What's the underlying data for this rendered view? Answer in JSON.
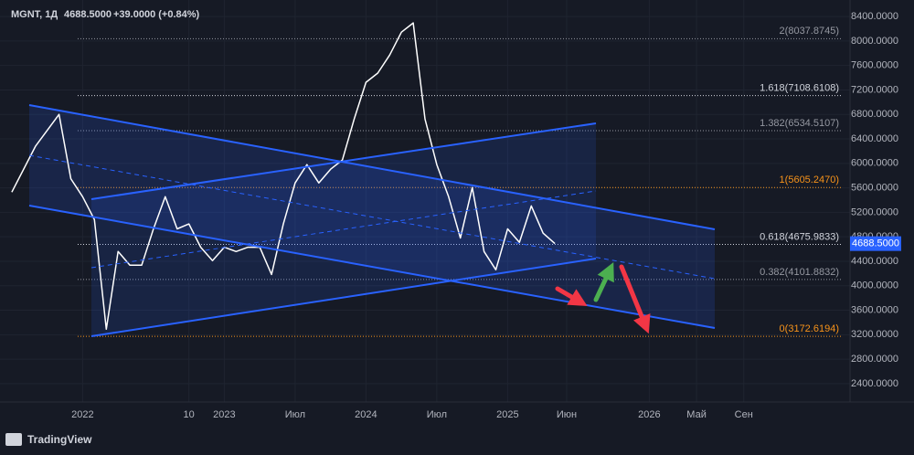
{
  "header": {
    "symbol": "MGNT, 1Д",
    "change": "+39.0000 (+0.84%)"
  },
  "chart_data": {
    "type": "line",
    "x": [
      "2021-07",
      "2021-09",
      "2021-11",
      "2021-12",
      "2022-01",
      "2022-02",
      "2022-03",
      "2022-04",
      "2022-05",
      "2022-06",
      "2022-07",
      "2022-08",
      "2022-09",
      "2022-10",
      "2022-11",
      "2022-12",
      "2023-01",
      "2023-02",
      "2023-03",
      "2023-04",
      "2023-05",
      "2023-06",
      "2023-07",
      "2023-08",
      "2023-09",
      "2023-10",
      "2023-11",
      "2023-12",
      "2024-01",
      "2024-02",
      "2024-03",
      "2024-04",
      "2024-05",
      "2024-06",
      "2024-07",
      "2024-08",
      "2024-09",
      "2024-10",
      "2024-11",
      "2024-12",
      "2025-01",
      "2025-02",
      "2025-03",
      "2025-04",
      "2025-05"
    ],
    "series": [
      {
        "name": "MGNT",
        "color": "#ffffff",
        "values": [
          5530,
          6280,
          6800,
          5750,
          5455,
          5080,
          3290,
          4560,
          4335,
          4335,
          4930,
          5455,
          4930,
          5010,
          4630,
          4410,
          4630,
          4560,
          4630,
          4630,
          4185,
          5010,
          5680,
          5980,
          5680,
          5905,
          6055,
          6725,
          7325,
          7475,
          7770,
          8145,
          8295,
          6725,
          5980,
          5455,
          4780,
          5605,
          4560,
          4260,
          4930,
          4710,
          5305,
          4860,
          4688.5
        ]
      }
    ],
    "last_price": {
      "value": 4688.5,
      "label": "4688.5000"
    },
    "xlim": [
      "2021-06",
      "2027-06"
    ],
    "xticks": [
      {
        "value": "2022-01",
        "label": "2022"
      },
      {
        "value": "2022-10",
        "label": "10"
      },
      {
        "value": "2023-01",
        "label": "2023"
      },
      {
        "value": "2023-07",
        "label": "Июл"
      },
      {
        "value": "2024-01",
        "label": "2024"
      },
      {
        "value": "2024-07",
        "label": "Июл"
      },
      {
        "value": "2025-01",
        "label": "2025"
      },
      {
        "value": "2025-06",
        "label": "Июн"
      },
      {
        "value": "2026-01",
        "label": "2026"
      },
      {
        "value": "2026-05",
        "label": "Май"
      },
      {
        "value": "2026-09",
        "label": "Сен"
      }
    ],
    "ylim": [
      2100,
      8670
    ],
    "yticks": [
      {
        "value": 2400,
        "label": "2400.0000"
      },
      {
        "value": 2800,
        "label": "2800.0000"
      },
      {
        "value": 3200,
        "label": "3200.0000"
      },
      {
        "value": 3600,
        "label": "3600.0000"
      },
      {
        "value": 4000,
        "label": "4000.0000"
      },
      {
        "value": 4400,
        "label": "4400.0000"
      },
      {
        "value": 4800,
        "label": "4800.0000"
      },
      {
        "value": 5200,
        "label": "5200.0000"
      },
      {
        "value": 5600,
        "label": "5600.0000"
      },
      {
        "value": 6000,
        "label": "6000.0000"
      },
      {
        "value": 6400,
        "label": "6400.0000"
      },
      {
        "value": 6800,
        "label": "6800.0000"
      },
      {
        "value": 7200,
        "label": "7200.0000"
      },
      {
        "value": 7600,
        "label": "7600.0000"
      },
      {
        "value": 8000,
        "label": "8000.0000"
      },
      {
        "value": 8400,
        "label": "8400.0000"
      }
    ],
    "grid": true,
    "fib_levels": [
      {
        "value": 8037.8745,
        "label": "2(8037.8745)",
        "color": "#9598a1"
      },
      {
        "value": 7108.6108,
        "label": "1.618(7108.6108)",
        "color": "#d1d4dc"
      },
      {
        "value": 6534.5107,
        "label": "1.382(6534.5107)",
        "color": "#9598a1"
      },
      {
        "value": 5605.247,
        "label": "1(5605.2470)",
        "color": "#f7931a"
      },
      {
        "value": 4675.9833,
        "label": "0.618(4675.9833)",
        "color": "#d1d4dc"
      },
      {
        "value": 4101.8832,
        "label": "0.382(4101.8832)",
        "color": "#9598a1"
      },
      {
        "value": 3172.6194,
        "label": "0(3172.6194)",
        "color": "#f7931a"
      }
    ]
  },
  "footer": {
    "brand": "TradingView"
  }
}
